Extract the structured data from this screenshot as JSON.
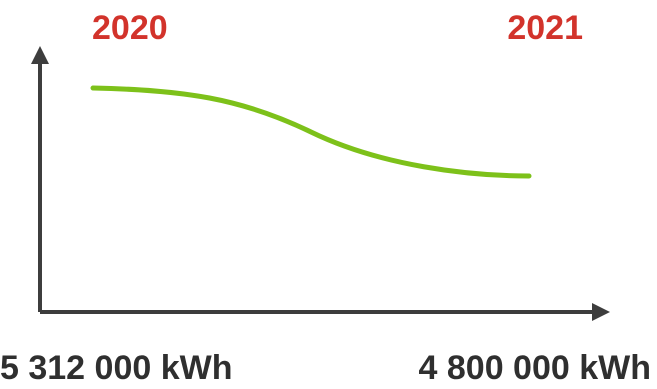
{
  "colors": {
    "line": "#7dc11a",
    "axis": "#3d3d3d",
    "year_label": "#d2332b",
    "value_label": "#2f2f2f"
  },
  "chart_data": {
    "type": "line",
    "categories": [
      "2020",
      "2021"
    ],
    "series": [
      {
        "values": [
          5312000,
          4800000
        ]
      }
    ],
    "value_labels": [
      "5 312 000 kWh",
      "4 800 000 kWh"
    ],
    "title": "",
    "xlabel": "",
    "ylabel": "",
    "grid": false
  }
}
